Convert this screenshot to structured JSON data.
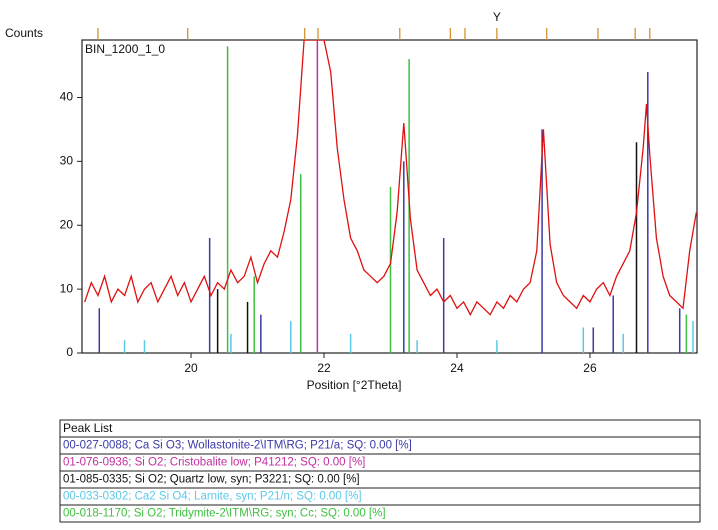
{
  "chart_data": {
    "type": "line",
    "y_label": "Counts",
    "x_label": "Position [°2Theta]",
    "annotation": "BIN_1200_1_0",
    "marker_label": "Y",
    "marker_position": 24.6,
    "xlim": [
      18.36,
      27.61
    ],
    "ylim": [
      0,
      49
    ],
    "xticks": [
      20,
      22,
      24,
      26
    ],
    "yticks": [
      0,
      10,
      20,
      30,
      40
    ],
    "series": [
      {
        "color": "#e01010",
        "x": [
          18.4,
          18.5,
          18.6,
          18.7,
          18.8,
          18.9,
          19.0,
          19.1,
          19.2,
          19.3,
          19.4,
          19.5,
          19.6,
          19.7,
          19.8,
          19.9,
          20.0,
          20.1,
          20.2,
          20.3,
          20.4,
          20.5,
          20.6,
          20.7,
          20.8,
          20.9,
          21.0,
          21.1,
          21.2,
          21.3,
          21.4,
          21.5,
          21.6,
          21.7,
          21.8,
          21.9,
          22.0,
          22.1,
          22.2,
          22.3,
          22.4,
          22.5,
          22.6,
          22.7,
          22.8,
          22.9,
          23.0,
          23.1,
          23.2,
          23.3,
          23.4,
          23.5,
          23.6,
          23.7,
          23.8,
          23.9,
          24.0,
          24.1,
          24.2,
          24.3,
          24.4,
          24.5,
          24.6,
          24.7,
          24.8,
          24.9,
          25.0,
          25.1,
          25.2,
          25.3,
          25.4,
          25.5,
          25.6,
          25.7,
          25.8,
          25.9,
          26.0,
          26.1,
          26.2,
          26.3,
          26.4,
          26.5,
          26.6,
          26.7,
          26.8,
          26.85,
          26.9,
          27.0,
          27.1,
          27.2,
          27.3,
          27.4,
          27.5,
          27.6
        ],
        "values": [
          8,
          11,
          9,
          12,
          8,
          10,
          9,
          12,
          8,
          10,
          11,
          8,
          10,
          12,
          9,
          11,
          8,
          10,
          12,
          9,
          11,
          10,
          13,
          11,
          12,
          15,
          11,
          14,
          16,
          15,
          19,
          24,
          34,
          49,
          49,
          49,
          49,
          44,
          32,
          24,
          18,
          16,
          13,
          12,
          11,
          12,
          14,
          22,
          36,
          21,
          13,
          11,
          9,
          10,
          8,
          9,
          7,
          8,
          6,
          8,
          7,
          6,
          8,
          7,
          9,
          8,
          10,
          11,
          16,
          35,
          17,
          11,
          9,
          8,
          7,
          9,
          8,
          10,
          11,
          9,
          12,
          14,
          16,
          22,
          32,
          39,
          31,
          18,
          12,
          9,
          8,
          7,
          16,
          22
        ]
      }
    ],
    "peak_list_color": "#d08a20",
    "peak_list_positions": [
      18.6,
      19.95,
      21.71,
      21.91,
      23.14,
      23.9,
      24.12,
      24.6,
      25.35,
      26.12,
      26.68,
      26.9
    ],
    "peak_list_title": "Peak List",
    "reference_patterns": [
      {
        "name": "00-027-0088; Ca Si O3; Wollastonite-2\\ITM\\RG; P21/a; SQ: 0.00 [%]",
        "color": "#3a3aa8",
        "positions": [
          18.62,
          20.28,
          21.05,
          23.2,
          23.8,
          25.28,
          26.05,
          26.35,
          26.87,
          27.35
        ],
        "heights": [
          7,
          18,
          6,
          30,
          18,
          35,
          4,
          9,
          44,
          7
        ]
      },
      {
        "name": "01-076-0936; Si O2; Cristobalite low; P41212; SQ: 0.00 [%]",
        "color": "#c030a0",
        "positions": [
          21.9
        ],
        "heights": [
          49
        ]
      },
      {
        "name": "01-085-0335; Si O2; Quartz low, syn; P3221; SQ: 0.00 [%]",
        "color": "#111111",
        "positions": [
          20.4,
          20.85,
          26.7
        ],
        "heights": [
          10,
          8,
          33
        ]
      },
      {
        "name": "00-033-0302; Ca2 Si O4; Larnite, syn; P21/n; SQ: 0.00 [%]",
        "color": "#5cc8e8",
        "positions": [
          19.0,
          19.3,
          20.6,
          21.5,
          22.4,
          23.4,
          24.6,
          25.9,
          26.5,
          27.55
        ],
        "heights": [
          2,
          2,
          3,
          5,
          3,
          2,
          2,
          4,
          3,
          5
        ]
      },
      {
        "name": "00-018-1170; Si O2; Tridymite-2\\ITM\\RG; syn; Cc; SQ: 0.00 [%]",
        "color": "#40c040",
        "positions": [
          20.55,
          20.95,
          21.65,
          23.0,
          23.28,
          27.45
        ],
        "heights": [
          48,
          12,
          28,
          26,
          46,
          6
        ]
      }
    ]
  }
}
